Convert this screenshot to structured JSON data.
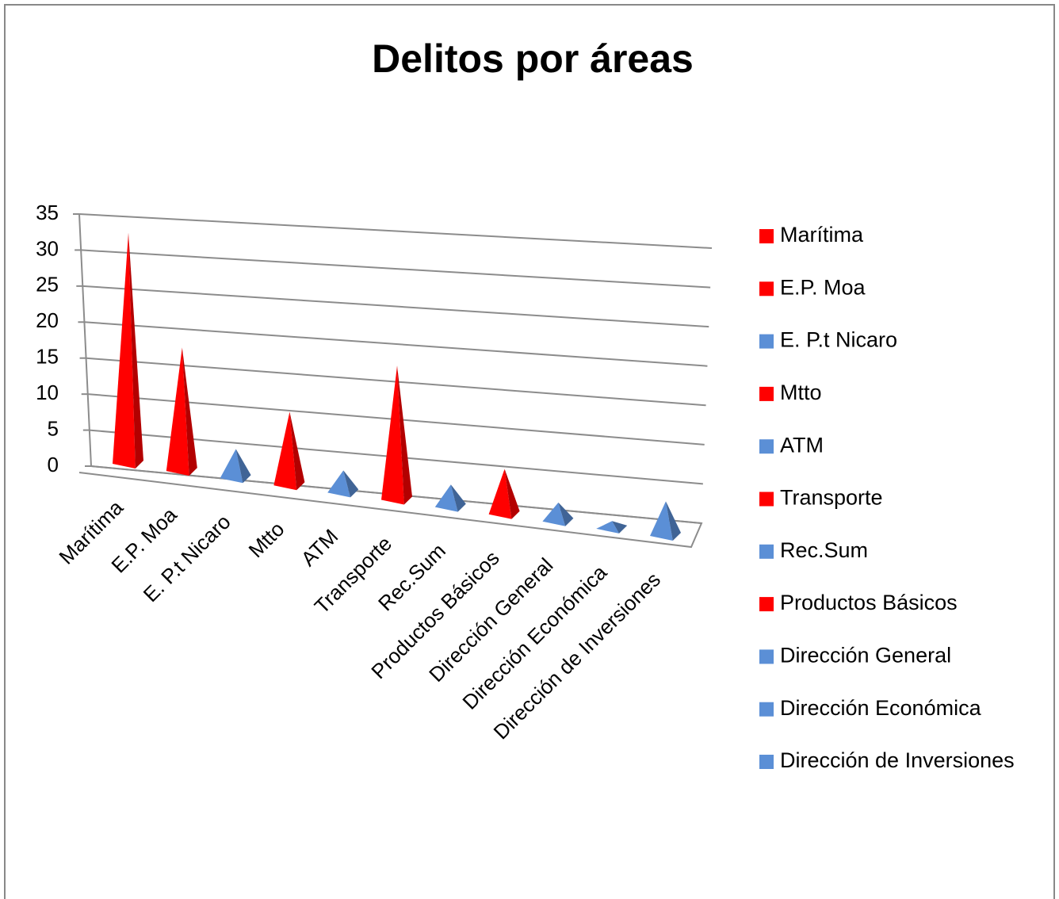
{
  "chart_data": {
    "type": "pyramid",
    "title": "Delitos por áreas",
    "categories": [
      "Marítima",
      "E.P. Moa",
      "E. P.t Nicaro",
      "Mtto",
      "ATM",
      "Transporte",
      "Rec.Sum",
      "Productos Básicos",
      "Dirección General",
      "Dirección Económica",
      "Dirección de Inversiones"
    ],
    "values": [
      32,
      17,
      4,
      10,
      3,
      18,
      3,
      6,
      2.5,
      1,
      4.5
    ],
    "colors": [
      "#ff0000",
      "#ff0000",
      "#5b8fd6",
      "#ff0000",
      "#5b8fd6",
      "#ff0000",
      "#5b8fd6",
      "#ff0000",
      "#5b8fd6",
      "#5b8fd6",
      "#5b8fd6"
    ],
    "ylim": [
      0,
      35
    ],
    "yticks": [
      0,
      5,
      10,
      15,
      20,
      25,
      30,
      35
    ],
    "grid": true,
    "legend": "right"
  }
}
